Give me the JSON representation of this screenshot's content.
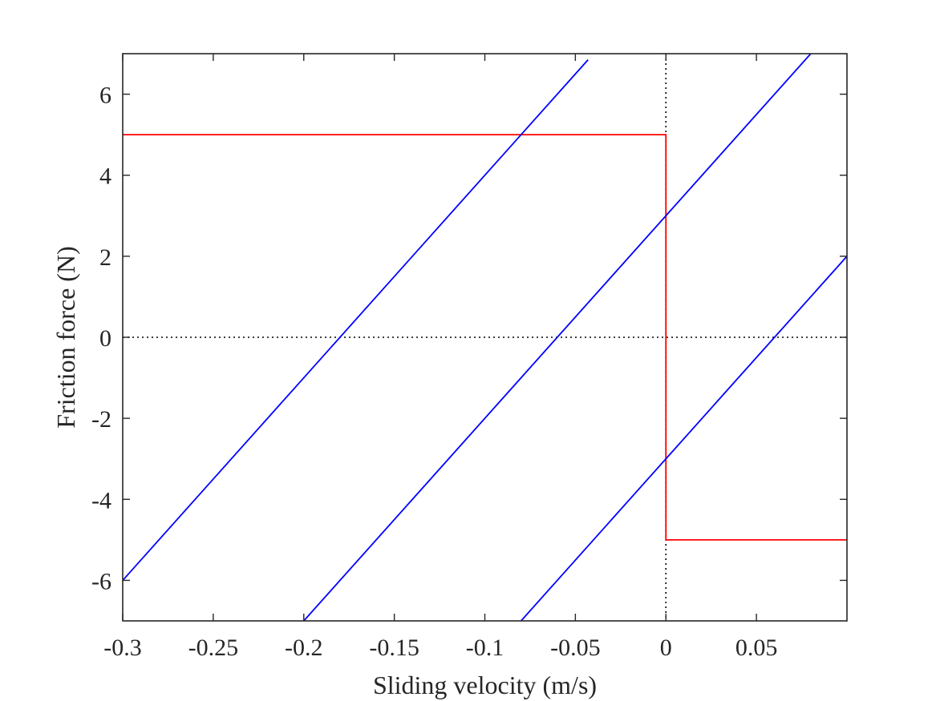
{
  "chart_data": {
    "type": "line",
    "title": "",
    "xlabel": "Sliding velocity (m/s)",
    "ylabel": "Friction force (N)",
    "xlim": [
      -0.3,
      0.1
    ],
    "ylim": [
      -7,
      7
    ],
    "grid": false,
    "legend": "none",
    "xticks": [
      -0.3,
      -0.25,
      -0.2,
      -0.15,
      -0.1,
      -0.05,
      0,
      0.05
    ],
    "xtick_labels": [
      "-0.3",
      "-0.25",
      "-0.2",
      "-0.15",
      "-0.1",
      "-0.05",
      "0",
      "0.05"
    ],
    "yticks": [
      -6,
      -4,
      -2,
      0,
      2,
      4,
      6
    ],
    "ytick_labels": [
      "-6",
      "-4",
      "-2",
      "0",
      "2",
      "4",
      "6"
    ],
    "reference_lines": [
      {
        "orientation": "horizontal",
        "value": 0,
        "style": "dotted",
        "color": "#000000"
      },
      {
        "orientation": "vertical",
        "value": 0,
        "style": "dotted",
        "color": "#000000"
      }
    ],
    "series": [
      {
        "color": "#ff0000",
        "x": [
          -0.3,
          0,
          0,
          0.1
        ],
        "y": [
          5,
          5,
          -5,
          -5
        ]
      },
      {
        "color": "#0000ff",
        "x": [
          -0.3,
          -0.043
        ],
        "y": [
          -6,
          6.85
        ]
      },
      {
        "color": "#0000ff",
        "x": [
          -0.2,
          0.08
        ],
        "y": [
          -7,
          7
        ]
      },
      {
        "color": "#0000ff",
        "x": [
          -0.08,
          0.1
        ],
        "y": [
          -7,
          2
        ]
      }
    ]
  }
}
